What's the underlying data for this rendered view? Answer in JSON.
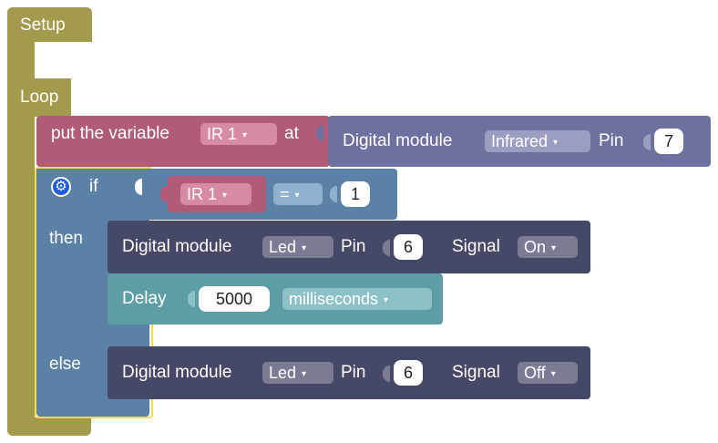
{
  "setup_block": {
    "label": "Setup"
  },
  "loop_block": {
    "label": "Loop"
  },
  "set_variable": {
    "prefix": "put the variable",
    "variable": "IR 1",
    "suffix": "at"
  },
  "digital_read": {
    "label": "Digital module",
    "module": "Infrared",
    "pin_label": "Pin",
    "pin": "7"
  },
  "if_block": {
    "if_label": "if",
    "then_label": "then",
    "else_label": "else",
    "gear_icon": "gear-icon"
  },
  "condition": {
    "variable": "IR 1",
    "operator": "=",
    "value": "1"
  },
  "then_write": {
    "label": "Digital module",
    "module": "Led",
    "pin_label": "Pin",
    "pin": "6",
    "signal_label": "Signal",
    "signal": "On"
  },
  "delay": {
    "label": "Delay",
    "value": "5000",
    "unit": "milliseconds"
  },
  "else_write": {
    "label": "Digital module",
    "module": "Led",
    "pin_label": "Pin",
    "pin": "6",
    "signal_label": "Signal",
    "signal": "Off"
  },
  "colors": {
    "loop": "#a39a4e",
    "variable": "#b15b79",
    "digital_read": "#6e71a0",
    "control": "#5b81a6",
    "digital_write": "#454867",
    "delay": "#5c9da6",
    "selected_outline": "#f5dc4a"
  },
  "dropdown_arrow": "▾"
}
